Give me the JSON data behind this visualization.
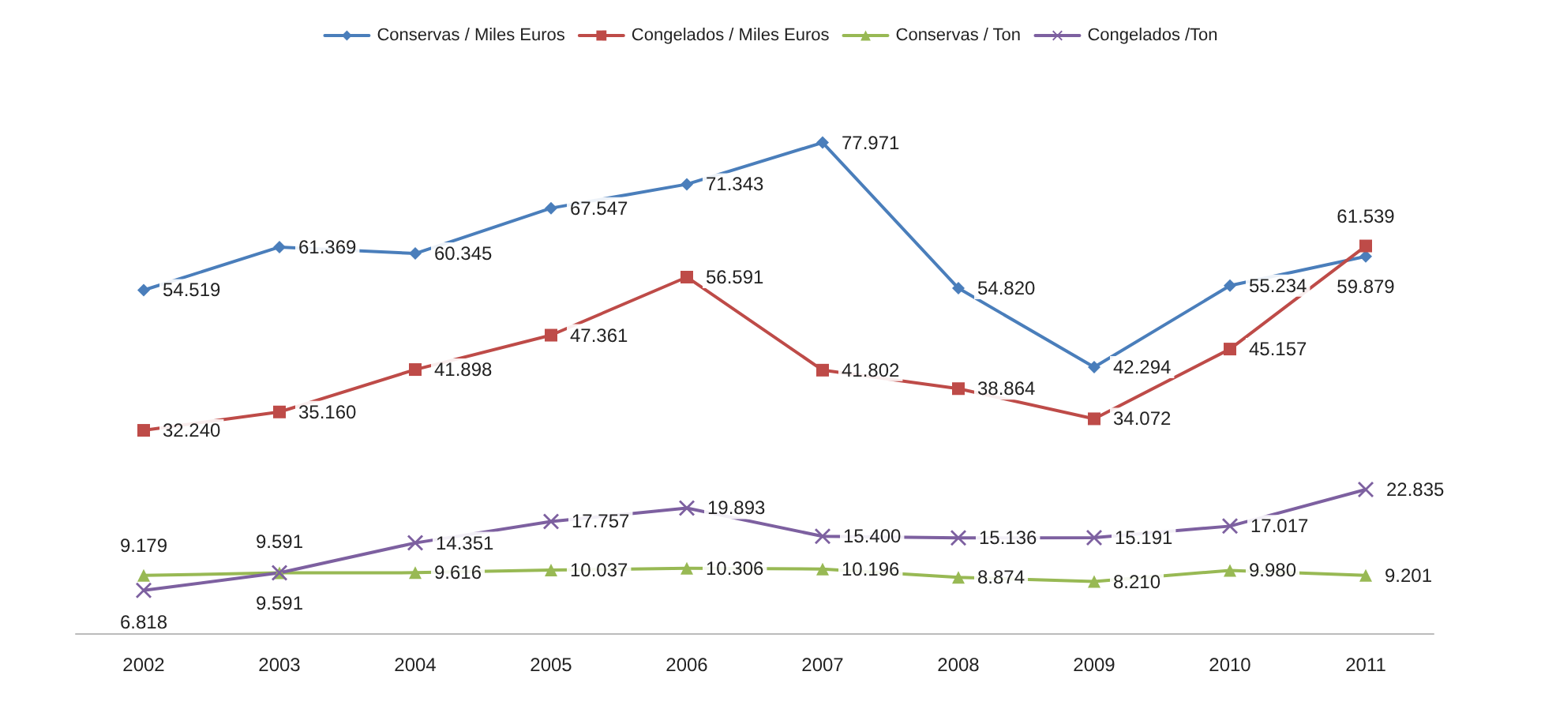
{
  "chart_data": {
    "type": "line",
    "categories": [
      "2002",
      "2003",
      "2004",
      "2005",
      "2006",
      "2007",
      "2008",
      "2009",
      "2010",
      "2011"
    ],
    "series": [
      {
        "name": "Conservas / Miles Euros",
        "color": "#4a7ebb",
        "marker": "diamond",
        "values": [
          54519,
          61369,
          60345,
          67547,
          71343,
          77971,
          54820,
          42294,
          55234,
          59879
        ],
        "value_labels": [
          "54.519",
          "61.369",
          "60.345",
          "67.547",
          "71.343",
          "77.971",
          "54.820",
          "42.294",
          "55.234",
          "59.879"
        ]
      },
      {
        "name": "Congelados / Miles Euros",
        "color": "#be4b48",
        "marker": "square",
        "values": [
          32240,
          35160,
          41898,
          47361,
          56591,
          41802,
          38864,
          34072,
          45157,
          61539
        ],
        "value_labels": [
          "32.240",
          "35.160",
          "41.898",
          "47.361",
          "56.591",
          "41.802",
          "38.864",
          "34.072",
          "45.157",
          "61.539"
        ]
      },
      {
        "name": "Conservas / Ton",
        "color": "#98b954",
        "marker": "triangle",
        "values": [
          9179,
          9591,
          9616,
          10037,
          10306,
          10196,
          8874,
          8210,
          9980,
          9201
        ],
        "value_labels": [
          "9.179",
          "9.591",
          "9.616",
          "10.037",
          "10.306",
          "10.196",
          "8.874",
          "8.210",
          "9.980",
          "9.201"
        ]
      },
      {
        "name": "Congelados /Ton",
        "color": "#7d60a0",
        "marker": "cross",
        "values": [
          6818,
          9591,
          14351,
          17757,
          19893,
          15400,
          15136,
          15191,
          17017,
          22835
        ],
        "value_labels": [
          "6.818",
          "9.591",
          "14.351",
          "17.757",
          "19.893",
          "15.400",
          "15.136",
          "15.191",
          "17.017",
          "22.835"
        ]
      }
    ],
    "legend": "top",
    "grid": false
  }
}
